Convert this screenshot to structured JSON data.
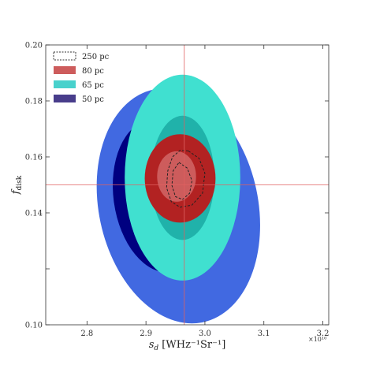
{
  "chart_data": {
    "type": "contour",
    "xlabel": "s_d [WHz⁻¹Sr⁻¹]",
    "xlabel_main": "s",
    "xlabel_sub": "d",
    "xlabel_rest": " [WHz⁻¹Sr⁻¹]",
    "ylabel_main": "f",
    "ylabel_sub": "disk",
    "x_offset_label": "×10¹⁰",
    "xlim": [
      2.73,
      3.21
    ],
    "ylim": [
      0.1,
      0.2
    ],
    "x_ticks": [
      2.8,
      2.9,
      3.0,
      3.1,
      3.2
    ],
    "x_tick_labels": [
      "2.8",
      "2.9",
      "3.0",
      "3.1",
      "3.2"
    ],
    "y_ticks": [
      0.1,
      0.12,
      0.14,
      0.16,
      0.18,
      0.2
    ],
    "y_tick_labels": [
      "0.10",
      "",
      "0.14",
      "0.16",
      "0.18",
      "0.20"
    ],
    "reference_lines": {
      "x": 2.965,
      "y": 0.15,
      "color": "#e06060"
    },
    "legend_position": "top-left",
    "legend": [
      {
        "label": "250 pc",
        "style": "dashed",
        "color": "#333333"
      },
      {
        "label": "80 pc",
        "style": "fill",
        "color": "#cd5c5c"
      },
      {
        "label": "65 pc",
        "style": "fill",
        "color": "#48d1cc"
      },
      {
        "label": "50 pc",
        "style": "fill",
        "color": "#483d8b"
      }
    ],
    "series": [
      {
        "name": "50 pc",
        "contours": [
          {
            "level": "outer",
            "cx": 2.955,
            "cy": 0.1425,
            "rx": 0.135,
            "ry": 0.0425,
            "angle": -12,
            "color": "#4169e1"
          },
          {
            "level": "inner",
            "cx": 2.925,
            "cy": 0.146,
            "rx": 0.08,
            "ry": 0.0275,
            "angle": -8,
            "color": "#000080"
          }
        ]
      },
      {
        "name": "65 pc",
        "contours": [
          {
            "level": "outer",
            "cx": 2.962,
            "cy": 0.1526,
            "rx": 0.098,
            "ry": 0.0368,
            "angle": 0,
            "color": "#40e0d0"
          },
          {
            "level": "inner",
            "cx": 2.962,
            "cy": 0.1525,
            "rx": 0.054,
            "ry": 0.0222,
            "angle": 0,
            "color": "#20b2aa"
          }
        ]
      },
      {
        "name": "80 pc",
        "contours": [
          {
            "level": "outer",
            "cx": 2.958,
            "cy": 0.1523,
            "rx": 0.06,
            "ry": 0.0158,
            "angle": 0,
            "color": "#b22222"
          },
          {
            "level": "inner",
            "cx": 2.952,
            "cy": 0.153,
            "rx": 0.033,
            "ry": 0.009,
            "angle": 0,
            "color": "#cd5c5c"
          }
        ]
      },
      {
        "name": "250 pc",
        "style": "dashed",
        "contours": [
          {
            "level": "outer",
            "points": [
              [
                2.972,
                0.1621
              ],
              [
                2.99,
                0.1595
              ],
              [
                3.0,
                0.1542
              ],
              [
                2.996,
                0.147
              ],
              [
                2.978,
                0.1428
              ],
              [
                2.958,
                0.142
              ],
              [
                2.943,
                0.144
              ],
              [
                2.935,
                0.149
              ],
              [
                2.937,
                0.155
              ],
              [
                2.945,
                0.16
              ],
              [
                2.958,
                0.1623
              ]
            ]
          },
          {
            "level": "inner",
            "points": [
              [
                2.956,
                0.158
              ],
              [
                2.97,
                0.156
              ],
              [
                2.978,
                0.1515
              ],
              [
                2.974,
                0.147
              ],
              [
                2.962,
                0.1448
              ],
              [
                2.95,
                0.1458
              ],
              [
                2.944,
                0.1498
              ],
              [
                2.946,
                0.155
              ]
            ]
          }
        ]
      }
    ]
  }
}
